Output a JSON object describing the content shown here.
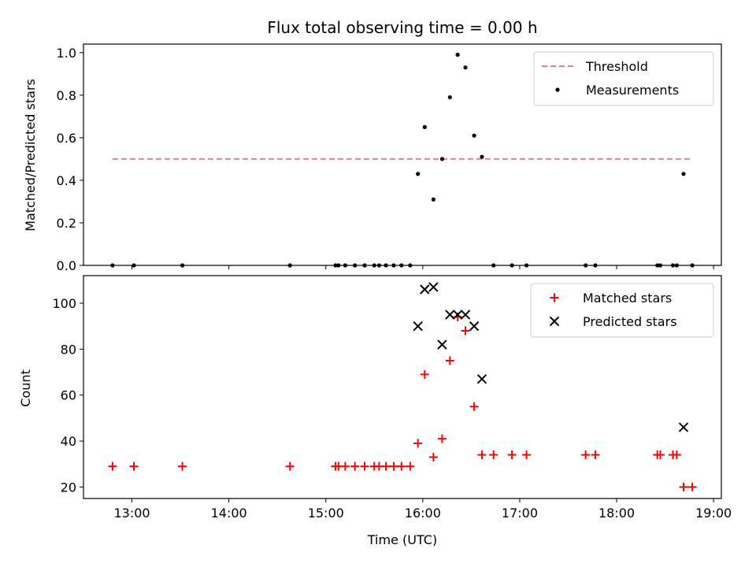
{
  "chart_data": [
    {
      "type": "scatter",
      "title": "Flux total observing time = 0.00 h",
      "ylabel": "Matched/Predicted stars",
      "xlabel": "",
      "xlim": [
        12.5,
        19.08
      ],
      "ylim": [
        0,
        1.04
      ],
      "yticks": [
        0.0,
        0.2,
        0.4,
        0.6,
        0.8,
        1.0
      ],
      "ytick_labels": [
        "0.0",
        "0.2",
        "0.4",
        "0.6",
        "0.8",
        "1.0"
      ],
      "xticks": [
        13,
        14,
        15,
        16,
        17,
        18,
        19
      ],
      "legend_position": "top-right",
      "series": [
        {
          "name": "Threshold",
          "style": "dashed-line",
          "color": "#f08080",
          "x": [
            12.8,
            18.78
          ],
          "y": [
            0.5,
            0.5
          ]
        },
        {
          "name": "Measurements",
          "style": "dot",
          "color": "#000000",
          "x": [
            12.8,
            13.02,
            13.52,
            14.63,
            15.1,
            15.13,
            15.2,
            15.3,
            15.4,
            15.5,
            15.55,
            15.62,
            15.7,
            15.78,
            15.87,
            15.95,
            16.02,
            16.11,
            16.2,
            16.28,
            16.36,
            16.44,
            16.53,
            16.61,
            16.73,
            16.92,
            17.07,
            17.68,
            17.78,
            18.42,
            18.45,
            18.58,
            18.62,
            18.69,
            18.78
          ],
          "y": [
            0,
            0,
            0,
            0,
            0,
            0,
            0,
            0,
            0,
            0,
            0,
            0,
            0,
            0,
            0,
            0.43,
            0.65,
            0.31,
            0.5,
            0.79,
            0.99,
            0.93,
            0.61,
            0.51,
            0,
            0,
            0,
            0,
            0,
            0,
            0,
            0,
            0,
            0.43,
            0
          ]
        }
      ]
    },
    {
      "type": "scatter",
      "title": "",
      "ylabel": "Count",
      "xlabel": "Time (UTC)",
      "xlim": [
        12.5,
        19.08
      ],
      "ylim": [
        15,
        112
      ],
      "yticks": [
        20,
        40,
        60,
        80,
        100
      ],
      "ytick_labels": [
        "20",
        "40",
        "60",
        "80",
        "100"
      ],
      "xticks": [
        13,
        14,
        15,
        16,
        17,
        18,
        19
      ],
      "xtick_labels": [
        "13:00",
        "14:00",
        "15:00",
        "16:00",
        "17:00",
        "18:00",
        "19:00"
      ],
      "legend_position": "top-right",
      "series": [
        {
          "name": "Matched stars",
          "style": "plus",
          "color": "#ff0000",
          "x": [
            12.8,
            13.02,
            13.52,
            14.63,
            15.1,
            15.13,
            15.2,
            15.3,
            15.4,
            15.5,
            15.55,
            15.62,
            15.7,
            15.78,
            15.87,
            15.95,
            16.02,
            16.11,
            16.2,
            16.28,
            16.36,
            16.44,
            16.53,
            16.61,
            16.73,
            16.92,
            17.07,
            17.68,
            17.78,
            18.42,
            18.45,
            18.58,
            18.62,
            18.69,
            18.78
          ],
          "y": [
            29,
            29,
            29,
            29,
            29,
            29,
            29,
            29,
            29,
            29,
            29,
            29,
            29,
            29,
            29,
            39,
            69,
            33,
            41,
            75,
            94,
            88,
            55,
            34,
            34,
            34,
            34,
            34,
            34,
            34,
            34,
            34,
            34,
            20,
            20
          ]
        },
        {
          "name": "Predicted stars",
          "style": "x",
          "color": "#000000",
          "x": [
            15.95,
            16.02,
            16.11,
            16.2,
            16.28,
            16.36,
            16.44,
            16.53,
            16.61,
            18.69
          ],
          "y": [
            90,
            106,
            107,
            82,
            95,
            95,
            95,
            90,
            67,
            46
          ]
        }
      ]
    }
  ]
}
